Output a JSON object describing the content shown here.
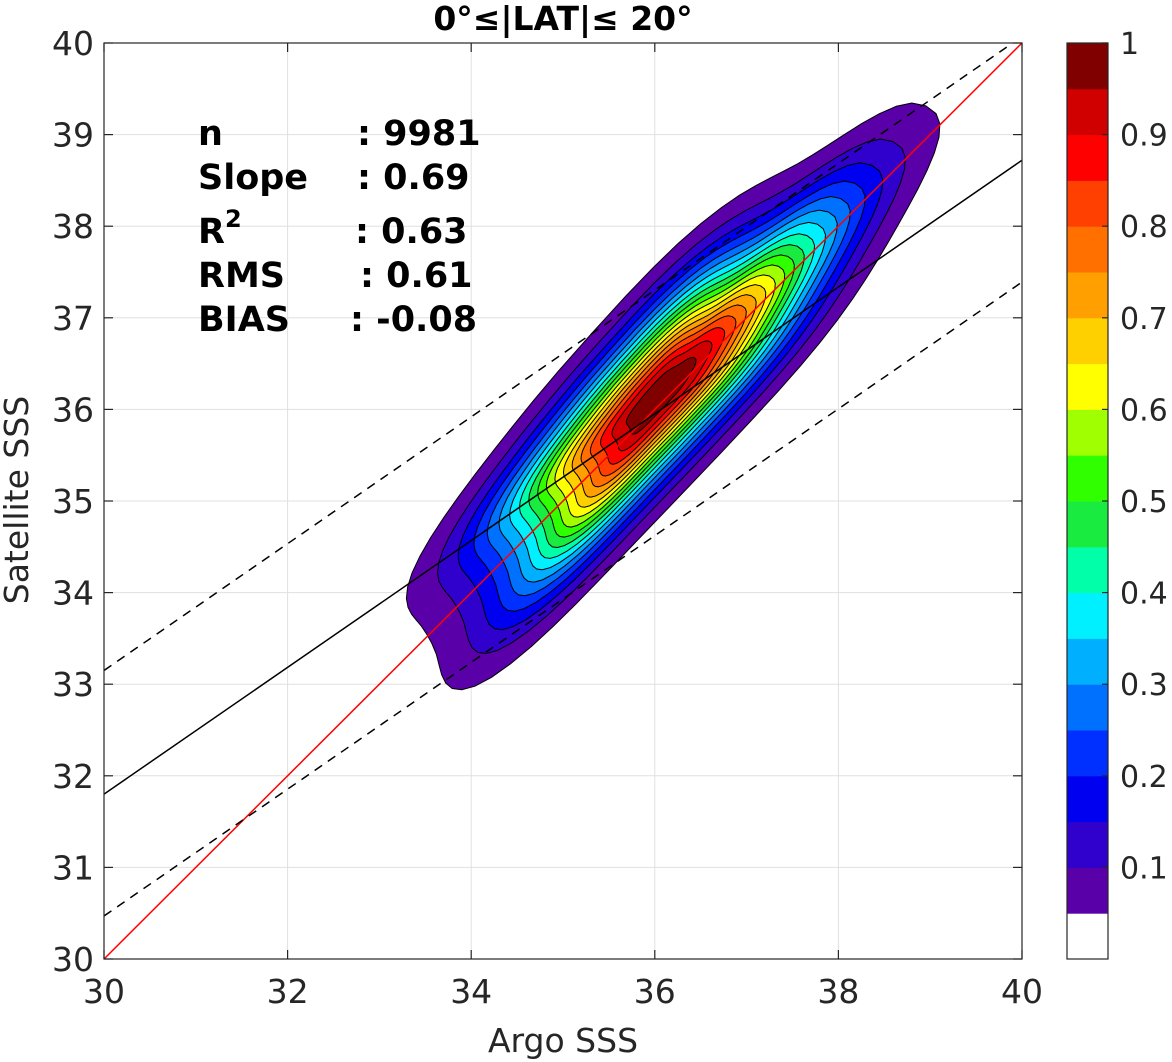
{
  "chart_data": {
    "type": "contour",
    "title": "0°≤|LAT|≤ 20°",
    "xlabel": "Argo SSS",
    "ylabel": "Satellite SSS",
    "xlim": [
      30,
      40
    ],
    "ylim": [
      30,
      40
    ],
    "x_ticks": [
      "30",
      "32",
      "34",
      "36",
      "38",
      "40"
    ],
    "y_ticks": [
      "30",
      "31",
      "32",
      "33",
      "34",
      "35",
      "36",
      "37",
      "38",
      "39",
      "40"
    ],
    "grid": true,
    "stats": [
      {
        "label": "n",
        "value": ": 9981"
      },
      {
        "label": "Slope",
        "value": ": 0.69"
      },
      {
        "label": "R",
        "superscript": "2",
        "value": ": 0.63"
      },
      {
        "label": "RMS",
        "value": ": 0.61"
      },
      {
        "label": "BIAS",
        "value": ": -0.08"
      }
    ],
    "lines": [
      {
        "kind": "one-to-one",
        "color": "#ff0000",
        "style": "solid",
        "x": [
          30,
          40
        ],
        "y": [
          30,
          40
        ]
      },
      {
        "kind": "regression",
        "color": "#000000",
        "style": "solid",
        "x": [
          30,
          40
        ],
        "y": [
          31.8,
          38.72
        ]
      },
      {
        "kind": "upper-bound",
        "color": "#000000",
        "style": "dashed",
        "x": [
          30,
          40
        ],
        "y": [
          33.15,
          40.07
        ]
      },
      {
        "kind": "lower-bound",
        "color": "#000000",
        "style": "dashed",
        "x": [
          30,
          40
        ],
        "y": [
          30.47,
          37.39
        ]
      }
    ],
    "density": {
      "center": [
        36.05,
        36.15
      ],
      "major_axis_slope": 1.09,
      "levels": [
        0.05,
        0.1,
        0.15,
        0.2,
        0.25,
        0.3,
        0.35,
        0.4,
        0.45,
        0.5,
        0.55,
        0.6,
        0.65,
        0.7,
        0.75,
        0.8,
        0.85,
        0.9,
        0.95
      ]
    },
    "colorbar": {
      "range": [
        0,
        1
      ],
      "tick_labels": [
        "0.1",
        "0.2",
        "0.3",
        "0.4",
        "0.5",
        "0.6",
        "0.7",
        "0.8",
        "0.9",
        "1"
      ],
      "tick_values": [
        0.1,
        0.2,
        0.3,
        0.4,
        0.5,
        0.6,
        0.7,
        0.8,
        0.9,
        1.0
      ],
      "colors": [
        "#ffffff",
        "#5a00a8",
        "#3000cc",
        "#0000f0",
        "#0030ff",
        "#0070ff",
        "#00b0ff",
        "#00f0ff",
        "#00ffa8",
        "#1aeb40",
        "#30ff00",
        "#a0ff00",
        "#ffff00",
        "#ffd000",
        "#ffa000",
        "#ff7000",
        "#ff4000",
        "#ff0000",
        "#d00000",
        "#800000"
      ]
    }
  }
}
